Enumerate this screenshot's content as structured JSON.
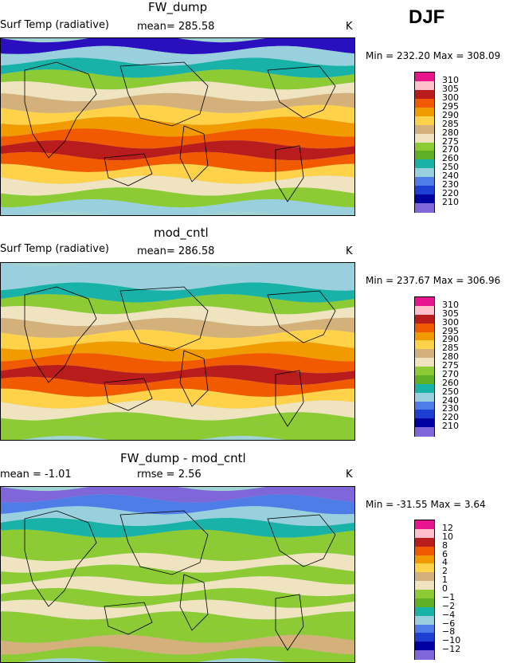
{
  "season": "DJF",
  "panels": [
    {
      "title": "FW_dump",
      "left_label": "Surf Temp (radiative)",
      "mid_label": "mean=  285.58",
      "units": "K",
      "minmax": "Min = 232.20 Max = 308.09",
      "bands": [
        "#2a0fbf",
        "#9ad0dd",
        "#18b2a8",
        "#8ccb34",
        "#f0e4c0",
        "#d4b07a",
        "#ffd24a",
        "#f29b00",
        "#f25a00",
        "#b91c1c",
        "#f25a00",
        "#ffd24a",
        "#f0e4c0",
        "#8ccb34",
        "#9ad0dd"
      ],
      "levels": [
        "310",
        "305",
        "300",
        "295",
        "290",
        "285",
        "280",
        "275",
        "270",
        "260",
        "250",
        "240",
        "230",
        "220",
        "210"
      ]
    },
    {
      "title": "mod_cntl",
      "left_label": "Surf Temp (radiative)",
      "mid_label": "mean=  286.58",
      "units": "K",
      "minmax": "Min = 237.67 Max = 306.96",
      "bands": [
        "#9ad0dd",
        "#9ad0dd",
        "#18b2a8",
        "#8ccb34",
        "#f0e4c0",
        "#d4b07a",
        "#ffd24a",
        "#f29b00",
        "#f25a00",
        "#b91c1c",
        "#f25a00",
        "#ffd24a",
        "#f0e4c0",
        "#8ccb34",
        "#8ccb34"
      ],
      "levels": [
        "310",
        "305",
        "300",
        "295",
        "290",
        "285",
        "280",
        "275",
        "270",
        "260",
        "250",
        "240",
        "230",
        "220",
        "210"
      ]
    },
    {
      "title": "FW_dump - mod_cntl",
      "left_label": "mean =   -1.01",
      "mid_label": "rmse =    2.56",
      "units": "K",
      "minmax": "Min = -31.55 Max =   3.64",
      "bands": [
        "#7f66d9",
        "#4f7de8",
        "#9ad0dd",
        "#18b2a8",
        "#8ccb34",
        "#8ccb34",
        "#f0e4c0",
        "#8ccb34",
        "#f0e4c0",
        "#8ccb34",
        "#f0e4c0",
        "#8ccb34",
        "#8ccb34",
        "#d4b07a",
        "#8ccb34"
      ],
      "levels": [
        "12",
        "10",
        "8",
        "6",
        "4",
        "2",
        "1",
        "0",
        "−1",
        "−2",
        "−4",
        "−6",
        "−8",
        "−10",
        "−12"
      ]
    }
  ],
  "colorbar_colors": [
    "#e8168c",
    "#ffc0cb",
    "#b91c1c",
    "#f25a00",
    "#f29b00",
    "#ffd24a",
    "#d4b07a",
    "#f0e4c0",
    "#8ccb34",
    "#5fb026",
    "#18b2a8",
    "#9ad0dd",
    "#4f7de8",
    "#1f3ed2",
    "#0000a0",
    "#7f66d9"
  ]
}
